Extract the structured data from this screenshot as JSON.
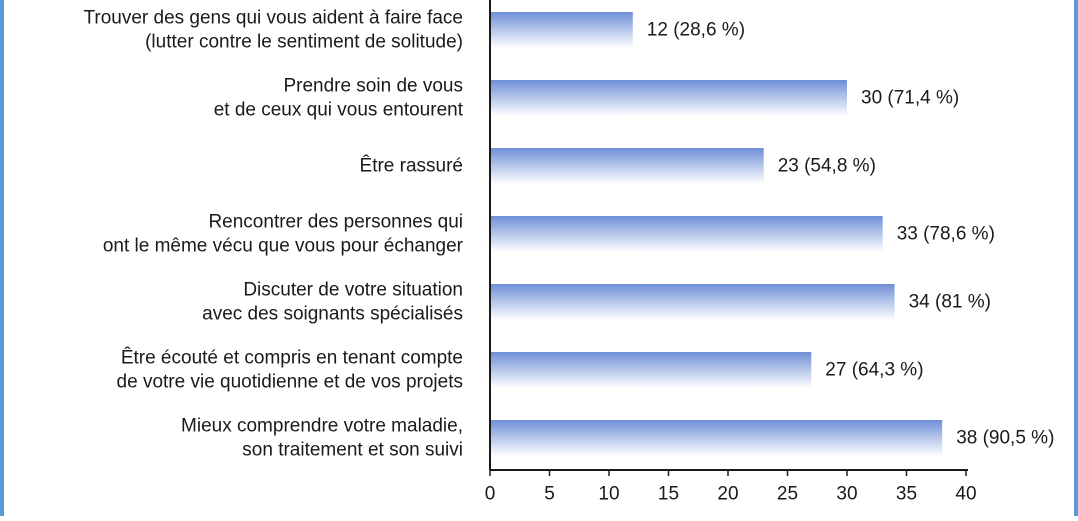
{
  "chart_data": {
    "type": "bar",
    "orientation": "horizontal",
    "categories": [
      [
        "Trouver des gens qui vous aident à faire face",
        "(lutter contre le sentiment de solitude)"
      ],
      [
        "Prendre soin de vous",
        "et de ceux qui vous entourent"
      ],
      [
        "Être rassuré"
      ],
      [
        "Rencontrer des personnes qui",
        "ont le même vécu que vous pour échanger"
      ],
      [
        "Discuter de votre situation",
        "avec des soignants spécialisés"
      ],
      [
        "Être écouté et compris en tenant compte",
        "de votre vie quotidienne et de vos projets"
      ],
      [
        "Mieux comprendre votre maladie,",
        "son traitement et son suivi"
      ]
    ],
    "values": [
      12,
      30,
      23,
      33,
      34,
      27,
      38
    ],
    "data_labels": [
      "12 (28,6 %)",
      "30 (71,4 %)",
      "23 (54,8 %)",
      "33 (78,6 %)",
      "34 (81 %)",
      "27 (64,3 %)",
      "38 (90,5 %)"
    ],
    "xlim": [
      0,
      40
    ],
    "xticks": [
      "0",
      "5",
      "10",
      "15",
      "20",
      "25",
      "30",
      "35",
      "40"
    ],
    "grid": false,
    "colors": {
      "bar_dark": "#6f8fd6",
      "bar_light": "#ffffff",
      "frame": "#5b9bd5",
      "axis": "#1a1a1a"
    }
  }
}
